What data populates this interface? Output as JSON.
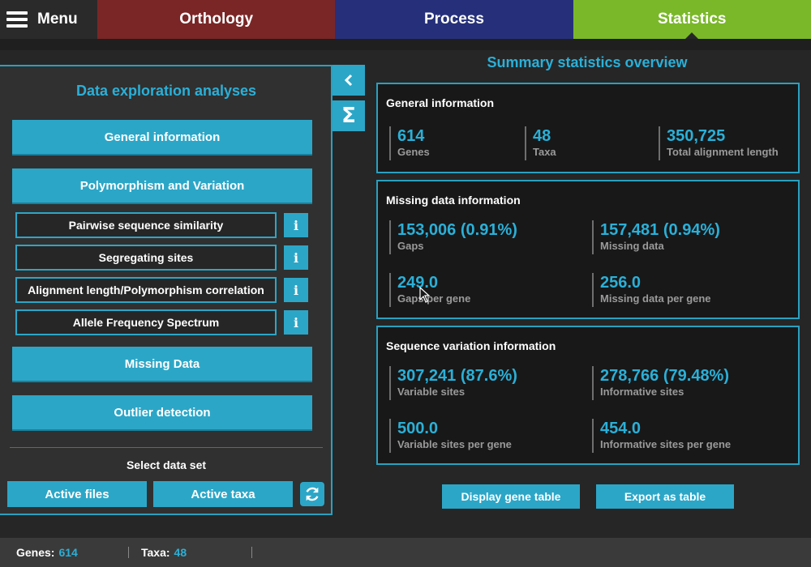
{
  "topbar": {
    "menu_label": "Menu",
    "tabs": [
      {
        "label": "Orthology",
        "color": "#7a2626"
      },
      {
        "label": "Process",
        "color": "#26307a"
      },
      {
        "label": "Statistics",
        "color": "#7ab829",
        "active": true
      }
    ]
  },
  "left": {
    "title": "Data exploration analyses",
    "general_btn": "General information",
    "polymorphism_btn": "Polymorphism and Variation",
    "sub_items": [
      {
        "label": "Pairwise sequence similarity",
        "info": "i"
      },
      {
        "label": "Segregating sites",
        "info": "i"
      },
      {
        "label": "Alignment length/Polymorphism correlation",
        "info": "i"
      },
      {
        "label": "Allele Frequency Spectrum",
        "info": "i"
      }
    ],
    "missing_btn": "Missing Data",
    "outlier_btn": "Outlier detection",
    "select_label": "Select data set",
    "active_files": "Active files",
    "active_taxa": "Active taxa"
  },
  "side": {
    "collapse_icon": "chevron-left-icon",
    "sigma_glyph": "Σ"
  },
  "right": {
    "title": "Summary statistics overview",
    "general": {
      "title": "General information",
      "stats": [
        {
          "value": "614",
          "label": "Genes"
        },
        {
          "value": "48",
          "label": "Taxa"
        },
        {
          "value": "350,725",
          "label": "Total alignment length"
        }
      ]
    },
    "missing": {
      "title": "Missing data information",
      "stats": [
        {
          "value": "153,006 (0.91%)",
          "label": "Gaps"
        },
        {
          "value": "157,481 (0.94%)",
          "label": "Missing data"
        },
        {
          "value": "249.0",
          "label": "Gaps per gene"
        },
        {
          "value": "256.0",
          "label": "Missing data per gene"
        }
      ]
    },
    "variation": {
      "title": "Sequence variation information",
      "stats": [
        {
          "value": "307,241 (87.6%)",
          "label": "Variable sites"
        },
        {
          "value": "278,766 (79.48%)",
          "label": "Informative sites"
        },
        {
          "value": "500.0",
          "label": "Variable sites per gene"
        },
        {
          "value": "454.0",
          "label": "Informative sites per gene"
        }
      ]
    },
    "display_table_btn": "Display gene table",
    "export_btn": "Export as table"
  },
  "status": {
    "genes_label": "Genes:",
    "genes_value": "614",
    "taxa_label": "Taxa:",
    "taxa_value": "48"
  },
  "colors": {
    "accent": "#2ca6c7",
    "accent_text": "#2ab0d8",
    "orthology": "#7a2626",
    "process": "#26307a",
    "statistics": "#7ab829"
  }
}
